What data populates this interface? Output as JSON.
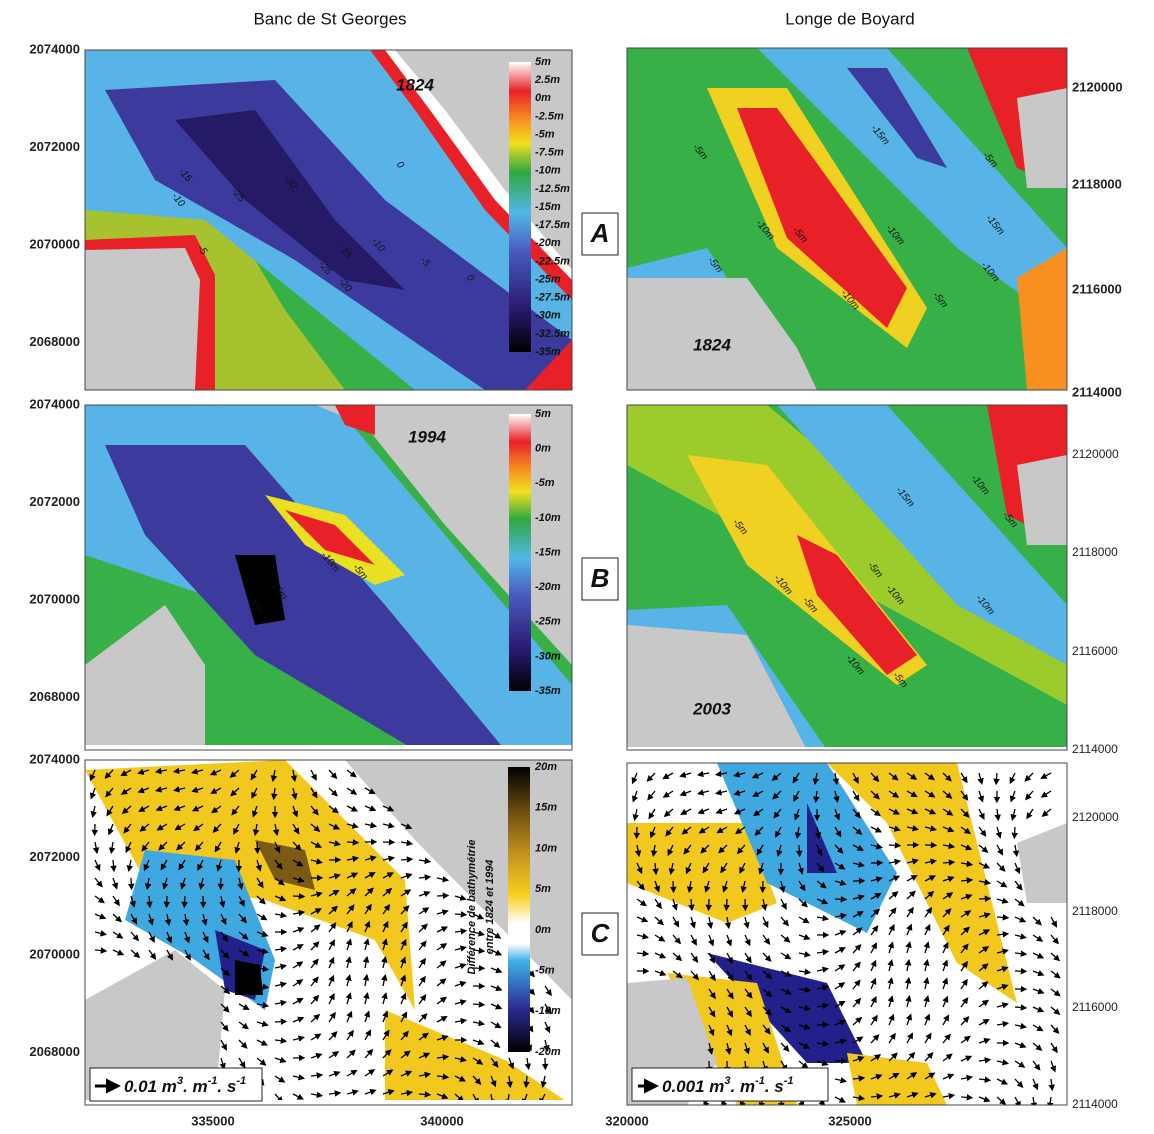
{
  "columns": [
    "Banc de St Georges",
    "Longe de Boyard"
  ],
  "panel_labels": [
    "A",
    "B",
    "C"
  ],
  "rows": [
    {
      "left": {
        "year": "1824",
        "y_ticks": [
          "2074000",
          "2072000",
          "2070000",
          "2068000"
        ],
        "contours": [
          "-20",
          "-25",
          "-15",
          "-10",
          "-5",
          "0",
          "-25",
          "-20",
          "-15",
          "-10",
          "-5",
          "0"
        ]
      },
      "right": {
        "year": "1824",
        "y_ticks": [
          "2120000",
          "2118000",
          "2116000",
          "2114000"
        ],
        "contours": [
          "-5m",
          "-10m",
          "-15m",
          "-5m",
          "-15m",
          "-10m",
          "-5m",
          "-10m",
          "-5m",
          "-10m",
          "-5m"
        ]
      },
      "colorbar": [
        "5m",
        "2.5m",
        "0m",
        "-2.5m",
        "-5m",
        "-7.5m",
        "-10m",
        "-12.5m",
        "-15m",
        "-17.5m",
        "-20m",
        "-22.5m",
        "-25m",
        "-27.5m",
        "-30m",
        "-32.5m",
        "-35m"
      ]
    },
    {
      "left": {
        "year": "1994",
        "y_ticks": [
          "2074000",
          "2072000",
          "2070000",
          "2068000"
        ],
        "contours": [
          "-15m",
          "-10m",
          "-5m",
          "-20m"
        ]
      },
      "right": {
        "year": "2003",
        "y_ticks": [
          "2120000",
          "2118000",
          "2116000",
          "2114000"
        ],
        "contours": [
          "-5m",
          "-10m",
          "-15m",
          "-10m",
          "-5m",
          "-5m",
          "-10m",
          "-5m",
          "-10m",
          "-10m",
          "-5m"
        ]
      },
      "colorbar": [
        "5m",
        "0m",
        "-5m",
        "-10m",
        "-15m",
        "-20m",
        "-25m",
        "-30m",
        "-35m"
      ]
    },
    {
      "left": {
        "y_ticks": [
          "2074000",
          "2072000",
          "2070000",
          "2068000"
        ],
        "scale": [
          "0.01 m",
          "3",
          ". m",
          "-1",
          ". s",
          "-1"
        ]
      },
      "right": {
        "y_ticks": [
          "2120000",
          "2118000",
          "2116000",
          "2114000"
        ],
        "scale": [
          "0.001 m",
          "3",
          ". m",
          "-1",
          ". s",
          "-1"
        ]
      },
      "colorbar": [
        "20m",
        "15m",
        "10m",
        "5m",
        "0m",
        "-5m",
        "-10m",
        "-20m"
      ],
      "colorbar_title": [
        "Différence de bathymétrie",
        "entre 1824 et 1994"
      ]
    }
  ],
  "x_ticks": {
    "left": [
      "335000",
      "340000"
    ],
    "right": [
      "320000",
      "325000"
    ]
  }
}
